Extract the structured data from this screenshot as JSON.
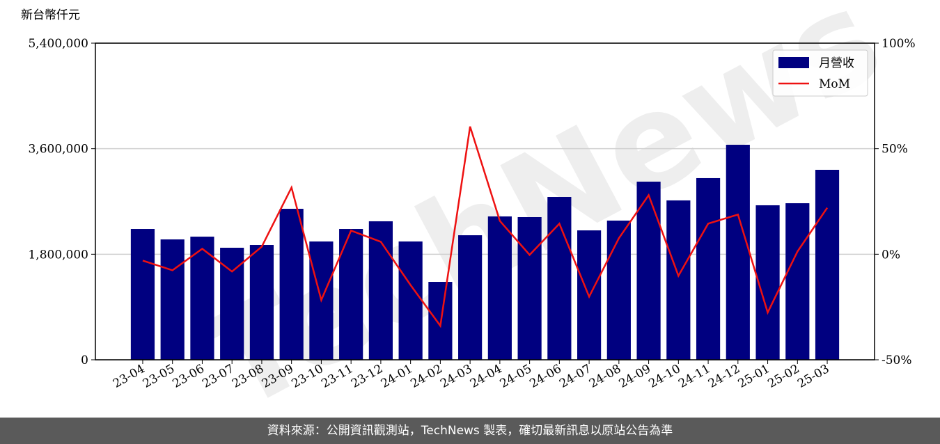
{
  "chart_data": {
    "type": "bar_line",
    "y_label": "新台幣仟元",
    "watermark": "TechNews",
    "footer": "資料來源：公開資訊觀測站，TechNews 製表，確切最新訊息以原站公告為準",
    "categories": [
      "23-04",
      "23-05",
      "23-06",
      "23-07",
      "23-08",
      "23-09",
      "23-10",
      "23-11",
      "23-12",
      "24-01",
      "24-02",
      "24-03",
      "24-04",
      "24-05",
      "24-06",
      "24-07",
      "24-08",
      "24-09",
      "24-10",
      "24-11",
      "24-12",
      "25-01",
      "25-02",
      "25-03"
    ],
    "series": [
      {
        "name": "月營收",
        "type": "bar",
        "color": "#000080",
        "values": [
          2231000,
          2053000,
          2100000,
          1911000,
          1958000,
          2575000,
          2018000,
          2231000,
          2362000,
          2018000,
          1329000,
          2124000,
          2445000,
          2433000,
          2777000,
          2207000,
          2374000,
          3038000,
          2718000,
          3098000,
          3667000,
          2635000,
          2670000,
          3240000
        ]
      },
      {
        "name": "MoM",
        "type": "line",
        "axis": "y2",
        "color": "#ee1111",
        "values": [
          -3.0,
          -7.6,
          2.6,
          -8.2,
          3.6,
          31.6,
          -21.7,
          11.2,
          5.9,
          -14.6,
          -33.9,
          60.5,
          15.8,
          -0.3,
          14.5,
          -20.1,
          7.6,
          28.0,
          -10.2,
          14.5,
          18.8,
          -27.6,
          1.3,
          22.0
        ]
      }
    ],
    "ylim": [
      0,
      5400000
    ],
    "yticks": [
      {
        "value": 0,
        "label": "0"
      },
      {
        "value": 1800000,
        "label": "1,800,000"
      },
      {
        "value": 3600000,
        "label": "3,600,000"
      },
      {
        "value": 5400000,
        "label": "5,400,000"
      }
    ],
    "y2lim": [
      -50,
      100
    ],
    "y2ticks": [
      {
        "value": -50,
        "label": "-50%"
      },
      {
        "value": 0,
        "label": "0%"
      },
      {
        "value": 50,
        "label": "50%"
      },
      {
        "value": 100,
        "label": "100%"
      }
    ],
    "grid": true,
    "legend": "upper right"
  }
}
